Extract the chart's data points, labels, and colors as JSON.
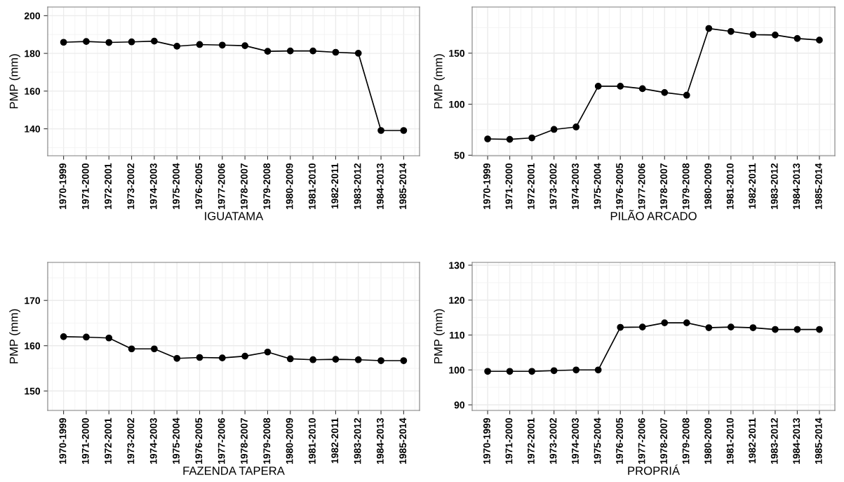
{
  "chart_data": [
    {
      "type": "line",
      "xlabel": "IGUATAMA",
      "ylabel": "PMP (mm)",
      "categories": [
        "1970-1999",
        "1971-2000",
        "1972-2001",
        "1973-2002",
        "1974-2003",
        "1975-2004",
        "1976-2005",
        "1977-2006",
        "1978-2007",
        "1979-2008",
        "1980-2009",
        "1981-2010",
        "1982-2011",
        "1983-2012",
        "1984-2013",
        "1985-2014"
      ],
      "series": [
        {
          "color": "#000000",
          "values": [
            185.9,
            186.3,
            185.8,
            186.1,
            186.5,
            183.8,
            184.7,
            184.4,
            184.1,
            181.1,
            181.3,
            181.3,
            180.6,
            180.1,
            139.1,
            139.1
          ]
        }
      ],
      "ylim": [
        125.7,
        204.6
      ],
      "yticks": [
        140,
        160,
        180,
        200
      ],
      "grid": true,
      "marker": "circle",
      "line_style": "solid"
    },
    {
      "type": "line",
      "xlabel": "PILÃO ARCADO",
      "ylabel": "PMP (mm)",
      "categories": [
        "1970-1999",
        "1971-2000",
        "1972-2001",
        "1973-2002",
        "1974-2003",
        "1975-2004",
        "1976-2005",
        "1977-2006",
        "1978-2007",
        "1979-2008",
        "1980-2009",
        "1981-2010",
        "1982-2011",
        "1983-2012",
        "1984-2013",
        "1985-2014"
      ],
      "series": [
        {
          "color": "#000000",
          "values": [
            66.0,
            65.6,
            67.0,
            75.3,
            77.7,
            117.6,
            117.6,
            115.2,
            111.4,
            108.8,
            174.2,
            171.3,
            168.1,
            167.8,
            164.4,
            162.8
          ]
        }
      ],
      "ylim": [
        49.5,
        195.2
      ],
      "yticks": [
        50,
        100,
        150
      ],
      "grid": true,
      "marker": "circle",
      "line_style": "solid"
    },
    {
      "type": "line",
      "xlabel": "FAZENDA TAPERA",
      "ylabel": "PMP (mm)",
      "categories": [
        "1970-1999",
        "1971-2000",
        "1972-2001",
        "1973-2002",
        "1974-2003",
        "1975-2004",
        "1976-2005",
        "1977-2006",
        "1978-2007",
        "1979-2008",
        "1980-2009",
        "1981-2010",
        "1982-2011",
        "1983-2012",
        "1984-2013",
        "1985-2014"
      ],
      "series": [
        {
          "color": "#000000",
          "values": [
            162.0,
            161.9,
            161.7,
            159.3,
            159.3,
            157.2,
            157.4,
            157.3,
            157.7,
            158.6,
            157.1,
            156.9,
            157.0,
            156.9,
            156.7,
            156.7
          ]
        }
      ],
      "ylim": [
        145.7,
        178.4
      ],
      "yticks": [
        150,
        160,
        170
      ],
      "grid": true,
      "marker": "circle",
      "line_style": "solid"
    },
    {
      "type": "line",
      "xlabel": "PROPRIÁ",
      "ylabel": "PMP (mm)",
      "categories": [
        "1970-1999",
        "1971-2000",
        "1972-2001",
        "1973-2002",
        "1974-2003",
        "1975-2004",
        "1976-2005",
        "1977-2006",
        "1978-2007",
        "1979-2008",
        "1980-2009",
        "1981-2010",
        "1982-2011",
        "1983-2012",
        "1984-2013",
        "1985-2014"
      ],
      "series": [
        {
          "color": "#000000",
          "values": [
            99.6,
            99.6,
            99.6,
            99.8,
            100.0,
            100.0,
            112.2,
            112.3,
            113.5,
            113.5,
            112.1,
            112.3,
            112.1,
            111.6,
            111.6,
            111.6
          ]
        }
      ],
      "ylim": [
        88.4,
        130.8
      ],
      "yticks": [
        90,
        100,
        110,
        120,
        130
      ],
      "grid": true,
      "marker": "circle",
      "line_style": "solid"
    }
  ]
}
